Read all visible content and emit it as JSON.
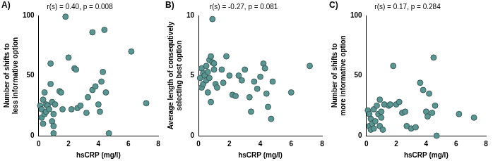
{
  "chart_data": [
    {
      "type": "scatter",
      "annotation": "A)",
      "title": "r(s) = 0.40, p = 0.008",
      "x_label": "hsCRP (mg/l)",
      "y_label": "Number of shifts to less informative option",
      "x": [
        0.1,
        0.2,
        0.2,
        0.3,
        0.3,
        0.4,
        0.4,
        0.5,
        0.5,
        0.6,
        0.7,
        0.8,
        0.8,
        0.9,
        0.9,
        1.0,
        1.0,
        1.0,
        1.1,
        1.4,
        1.5,
        1.6,
        1.8,
        2.0,
        2.2,
        2.4,
        2.5,
        2.6,
        2.8,
        3.2,
        3.3,
        3.6,
        3.6,
        3.8,
        4.0,
        4.1,
        4.2,
        4.3,
        4.4,
        4.5,
        4.7,
        6.2,
        7.2
      ],
      "values": [
        25,
        22,
        15,
        30,
        10,
        18,
        36,
        26,
        20,
        25,
        22,
        43,
        60,
        28,
        12,
        8,
        2,
        18,
        26,
        37,
        36,
        22,
        99,
        65,
        22,
        56,
        55,
        23,
        25,
        19,
        32,
        86,
        38,
        41,
        26,
        20,
        45,
        53,
        88,
        36,
        2,
        70,
        27
      ],
      "color": "#5b9591",
      "marker": "circle",
      "xlim": [
        0,
        8
      ],
      "xticks": [
        0,
        2,
        4,
        6,
        8
      ],
      "ylim": [
        0,
        100
      ],
      "yticks": [
        0,
        50,
        100
      ],
      "grid": false
    },
    {
      "type": "scatter",
      "annotation": "B)",
      "title": "r(s) = -0.27, p = 0.081",
      "x_label": "hsCRP (mg/l)",
      "y_label": "Average length of consequtively selecting best option",
      "x": [
        0.1,
        0.2,
        0.2,
        0.3,
        0.3,
        0.4,
        0.5,
        0.5,
        0.6,
        0.6,
        0.7,
        0.7,
        0.8,
        0.8,
        0.9,
        0.9,
        1.0,
        1.0,
        1.1,
        1.2,
        1.5,
        1.6,
        1.8,
        2.0,
        2.2,
        2.4,
        2.6,
        2.8,
        3.0,
        3.3,
        3.4,
        3.6,
        3.8,
        4.0,
        4.2,
        4.3,
        4.4,
        4.5,
        4.7,
        4.8,
        6.0,
        7.2
      ],
      "values": [
        4.8,
        5.6,
        4.0,
        5.2,
        4.3,
        5.0,
        4.6,
        5.8,
        5.3,
        3.6,
        6.3,
        4.8,
        6.6,
        2.8,
        9.7,
        6.1,
        6.0,
        5.5,
        4.3,
        4.0,
        5.5,
        4.4,
        6.6,
        5.0,
        3.4,
        3.3,
        5.0,
        4.6,
        5.5,
        3.2,
        2.0,
        4.5,
        3.9,
        4.9,
        6.0,
        5.6,
        3.5,
        2.4,
        1.4,
        4.5,
        3.6,
        5.8
      ],
      "color": "#5b9591",
      "marker": "circle",
      "xlim": [
        0,
        8
      ],
      "xticks": [
        0,
        2,
        4,
        6,
        8
      ],
      "ylim": [
        0,
        10
      ],
      "yticks": [
        0,
        5,
        10
      ],
      "grid": false
    },
    {
      "type": "scatter",
      "annotation": "C)",
      "title": "r(s) = 0.17, p = 0.284",
      "x_label": "hsCRP (mg/l)",
      "y_label": "Number of shifts to more informative option",
      "x": [
        0.1,
        0.2,
        0.2,
        0.3,
        0.3,
        0.4,
        0.5,
        0.5,
        0.6,
        0.7,
        0.8,
        0.9,
        0.9,
        1.0,
        1.0,
        1.1,
        1.2,
        1.5,
        1.6,
        1.8,
        2.0,
        2.2,
        2.4,
        2.6,
        2.7,
        3.0,
        3.3,
        3.6,
        3.8,
        4.0,
        4.1,
        4.2,
        4.4,
        4.5,
        4.6,
        4.7,
        6.2,
        7.2
      ],
      "values": [
        21,
        18,
        8,
        14,
        5,
        10,
        22,
        6,
        12,
        25,
        18,
        30,
        8,
        20,
        15,
        5,
        26,
        25,
        26,
        58,
        26,
        28,
        19,
        20,
        8,
        6,
        7,
        44,
        38,
        20,
        16,
        35,
        19,
        65,
        25,
        0,
        18,
        15
      ],
      "color": "#5b9591",
      "marker": "circle",
      "xlim": [
        0,
        8
      ],
      "xticks": [
        0,
        2,
        4,
        6,
        8
      ],
      "ylim": [
        0,
        100
      ],
      "yticks": [
        0,
        50,
        100
      ],
      "grid": false
    }
  ]
}
